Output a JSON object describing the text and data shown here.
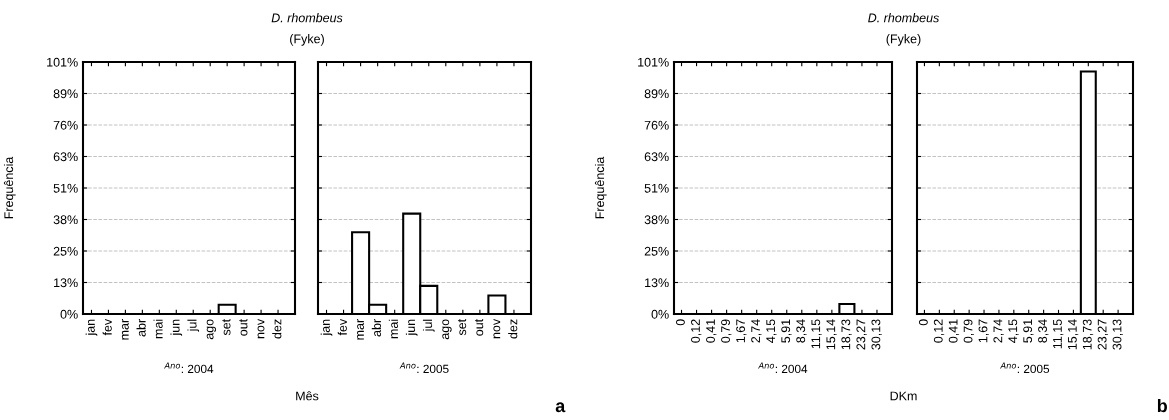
{
  "chart_data": [
    {
      "type": "bar",
      "title": "D. rhombeus",
      "subtitle": "(Fyke)",
      "xlabel": "Mês",
      "ylabel": "Frequência",
      "categories": [
        "jan",
        "fev",
        "mar",
        "abr",
        "mai",
        "jun",
        "jul",
        "ago",
        "set",
        "out",
        "nov",
        "dez"
      ],
      "values": [
        0,
        0,
        0,
        0,
        0,
        0,
        0,
        0,
        3.7,
        0,
        0,
        0
      ],
      "color": "#ffffff",
      "ylim": [
        0,
        101.2
      ],
      "yticks": [
        {
          "value": 0,
          "label": "0%"
        },
        {
          "value": 12.65,
          "label": "13%"
        },
        {
          "value": 25.3,
          "label": "25%"
        },
        {
          "value": 37.95,
          "label": "38%"
        },
        {
          "value": 50.6,
          "label": "51%"
        },
        {
          "value": 63.25,
          "label": "63%"
        },
        {
          "value": 75.9,
          "label": "76%"
        },
        {
          "value": 88.55,
          "label": "89%"
        },
        {
          "value": 101.2,
          "label": "101%"
        }
      ],
      "grid": "y",
      "annotations": [
        "$^{Ano}$: 2004"
      ]
    },
    {
      "type": "bar",
      "categories": [
        "jan",
        "fev",
        "mar",
        "abr",
        "mai",
        "jun",
        "jul",
        "ago",
        "set",
        "out",
        "nov",
        "dez"
      ],
      "values": [
        0,
        0,
        32.8,
        3.7,
        0,
        40.3,
        11.3,
        0,
        0,
        0,
        7.4,
        0
      ],
      "color": "#ffffff",
      "ylim": [
        0,
        101.2
      ],
      "yticks": [
        {
          "value": 0,
          "label": null
        },
        {
          "value": 12.65,
          "label": null
        },
        {
          "value": 25.3,
          "label": null
        },
        {
          "value": 37.95,
          "label": null
        },
        {
          "value": 50.6,
          "label": null
        },
        {
          "value": 63.25,
          "label": null
        },
        {
          "value": 75.9,
          "label": null
        },
        {
          "value": 88.55,
          "label": null
        },
        {
          "value": 101.2,
          "label": null
        }
      ],
      "grid": "y",
      "tick_labels": "x",
      "annotations": [
        "$^{Ano}$: 2005",
        "a"
      ]
    },
    {
      "type": "bar",
      "title": "D. rhombeus",
      "subtitle": "(Fyke)",
      "xlabel": "DKm",
      "ylabel": "Frequência",
      "categories": [
        "0",
        "0,12",
        "0,41",
        "0,79",
        "1,67",
        "2,74",
        "4,15",
        "5,91",
        "8,34",
        "11,15",
        "15,14",
        "18,73",
        "23,27",
        "30,13"
      ],
      "values": [
        0,
        0,
        0,
        0,
        0,
        0,
        0,
        0,
        0,
        0,
        0,
        4.0,
        0,
        0
      ],
      "color": "#ffffff",
      "ylim": [
        0,
        101.2
      ],
      "yticks": [
        {
          "value": 0,
          "label": "0%"
        },
        {
          "value": 12.65,
          "label": "13%"
        },
        {
          "value": 25.3,
          "label": "25%"
        },
        {
          "value": 37.95,
          "label": "38%"
        },
        {
          "value": 50.6,
          "label": "51%"
        },
        {
          "value": 63.25,
          "label": "63%"
        },
        {
          "value": 75.9,
          "label": "76%"
        },
        {
          "value": 88.55,
          "label": "89%"
        },
        {
          "value": 101.2,
          "label": "101%"
        }
      ],
      "grid": "y",
      "annotations": [
        "$^{Ano}$: 2004"
      ]
    },
    {
      "type": "bar",
      "categories": [
        "0",
        "0,12",
        "0,41",
        "0,79",
        "1,67",
        "2,74",
        "4,15",
        "5,91",
        "8,34",
        "11,15",
        "15,14",
        "18,73",
        "23,27",
        "30,13"
      ],
      "values": [
        0,
        0,
        0,
        0,
        0,
        0,
        0,
        0,
        0,
        0,
        0,
        97.4,
        0,
        0
      ],
      "color": "#ffffff",
      "ylim": [
        0,
        101.2
      ],
      "yticks": [
        {
          "value": 0,
          "label": null
        },
        {
          "value": 12.65,
          "label": null
        },
        {
          "value": 25.3,
          "label": null
        },
        {
          "value": 37.95,
          "label": null
        },
        {
          "value": 50.6,
          "label": null
        },
        {
          "value": 63.25,
          "label": null
        },
        {
          "value": 75.9,
          "label": null
        },
        {
          "value": 88.55,
          "label": null
        },
        {
          "value": 101.2,
          "label": null
        }
      ],
      "grid": "y",
      "tick_labels": "x",
      "annotations": [
        "$^{Ano}$: 2005",
        "b"
      ]
    }
  ]
}
